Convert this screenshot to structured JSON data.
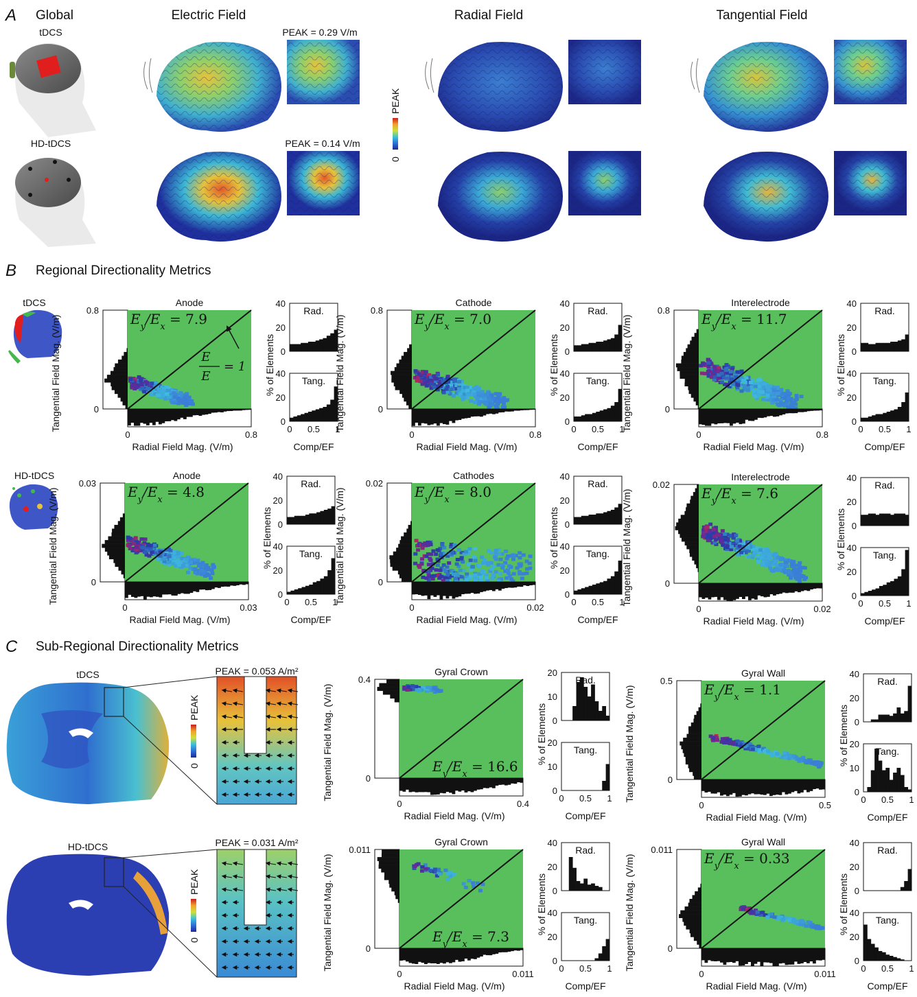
{
  "panel_letters": {
    "A": "A",
    "B": "B",
    "C": "C"
  },
  "section_A": {
    "global_label": "Global",
    "montages": [
      "tDCS",
      "HD-tDCS"
    ],
    "columns": [
      "Electric Field",
      "Radial Field",
      "Tangential Field"
    ],
    "peaks": [
      "PEAK = 0.29 V/m",
      "PEAK = 0.14 V/m"
    ],
    "colorbar": {
      "label": "PEAK",
      "zero": "0"
    }
  },
  "section_B": {
    "title": "Regional Directionality Metrics",
    "montages": [
      "tDCS",
      "HD-tDCS"
    ],
    "ylabel": "Tangential Field Mag. (V/m)",
    "xlabel": "Radial Field Mag. (V/m)",
    "hist_ylabel": "% of Elements",
    "hist_xlabel": "Comp/EF",
    "hist_labels": [
      "Rad.",
      "Tang."
    ],
    "ratio_annotation": "E_y/E_x = 1",
    "hist_y_ticks": [
      "0",
      "20",
      "40"
    ],
    "hist_x_ticks": [
      "0",
      "0.5",
      "1"
    ]
  },
  "section_C": {
    "title": "Sub-Regional Directionality Metrics",
    "montages": [
      "tDCS",
      "HD-tDCS"
    ],
    "peaks": [
      "PEAK = 0.053 A/m²",
      "PEAK = 0.031 A/m²"
    ],
    "colorbar": {
      "label": "PEAK",
      "zero": "0"
    }
  },
  "chart_data": [
    {
      "type": "heatmap",
      "panel": "B",
      "montage": "tDCS",
      "title": "Anode",
      "ratio": "E_y/E_x = 7.9",
      "xlim": [
        0,
        0.8
      ],
      "ylim": [
        0,
        0.8
      ],
      "x_ticks": [
        "0",
        "0.8"
      ],
      "y_ticks": [
        "0",
        "0.8"
      ],
      "xlabel": "Radial Field Mag. (V/m)",
      "ylabel": "Tangential Field Mag. (V/m)",
      "hist_rad": [
        6,
        6,
        6,
        7,
        7,
        8,
        8,
        9,
        10,
        11,
        13,
        15,
        18
      ],
      "hist_tang": [
        3,
        4,
        5,
        6,
        7,
        8,
        9,
        10,
        11,
        12,
        14,
        18,
        29
      ],
      "hist_ymax": 40,
      "hist_ticks": [
        "0",
        "20",
        "40"
      ]
    },
    {
      "type": "heatmap",
      "panel": "B",
      "montage": "tDCS",
      "title": "Cathode",
      "ratio": "E_y/E_x = 7.0",
      "xlim": [
        0,
        0.8
      ],
      "ylim": [
        0,
        0.8
      ],
      "x_ticks": [
        "0",
        "0.8"
      ],
      "y_ticks": [
        "0",
        "0.8"
      ],
      "xlabel": "Radial Field Mag. (V/m)",
      "ylabel": "Tangential Field Mag. (V/m)",
      "hist_rad": [
        5,
        5,
        6,
        6,
        7,
        7,
        8,
        8,
        9,
        10,
        11,
        14,
        22
      ],
      "hist_tang": [
        4,
        4,
        5,
        6,
        6,
        7,
        8,
        9,
        10,
        11,
        13,
        16,
        27
      ],
      "hist_ymax": 40,
      "hist_ticks": [
        "0",
        "20",
        "40"
      ]
    },
    {
      "type": "heatmap",
      "panel": "B",
      "montage": "tDCS",
      "title": "Interelectrode",
      "ratio": "E_y/E_x = 11.7",
      "xlim": [
        0,
        0.8
      ],
      "ylim": [
        0,
        0.8
      ],
      "x_ticks": [
        "0",
        "0.8"
      ],
      "y_ticks": [
        "0",
        "0.8"
      ],
      "xlabel": "Radial Field Mag. (V/m)",
      "ylabel": "Tangential Field Mag. (V/m)",
      "hist_rad": [
        7,
        7,
        6,
        6,
        7,
        7,
        7,
        7,
        8,
        8,
        9,
        10,
        14
      ],
      "hist_tang": [
        3,
        3,
        4,
        5,
        6,
        6,
        7,
        8,
        9,
        10,
        12,
        16,
        24
      ],
      "hist_ymax": 40,
      "hist_ticks": [
        "0",
        "20",
        "40"
      ]
    },
    {
      "type": "heatmap",
      "panel": "B",
      "montage": "HD-tDCS",
      "title": "Anode",
      "ratio": "E_y/E_x = 4.8",
      "xlim": [
        0,
        0.03
      ],
      "ylim": [
        0,
        0.03
      ],
      "x_ticks": [
        "0",
        "0.03"
      ],
      "y_ticks": [
        "0",
        "0.03"
      ],
      "xlabel": "Radial Field Mag. (V/m)",
      "ylabel": "Tangential Field Mag. (V/m)",
      "hist_rad": [
        6,
        6,
        7,
        7,
        7,
        8,
        9,
        9,
        10,
        11,
        12,
        13,
        15
      ],
      "hist_tang": [
        2,
        3,
        4,
        5,
        6,
        7,
        8,
        10,
        11,
        13,
        15,
        20,
        30
      ],
      "hist_ymax": 40,
      "hist_ticks": [
        "0",
        "20",
        "40"
      ]
    },
    {
      "type": "heatmap",
      "panel": "B",
      "montage": "HD-tDCS",
      "title": "Cathodes",
      "ratio": "E_y/E_x = 8.0",
      "xlim": [
        0,
        0.02
      ],
      "ylim": [
        0,
        0.02
      ],
      "x_ticks": [
        "0",
        "0.02"
      ],
      "y_ticks": [
        "0",
        "0.02"
      ],
      "xlabel": "Radial Field Mag. (V/m)",
      "ylabel": "Tangential Field Mag. (V/m)",
      "hist_rad": [
        6,
        6,
        7,
        7,
        8,
        8,
        9,
        9,
        10,
        11,
        12,
        14,
        17
      ],
      "hist_tang": [
        3,
        4,
        5,
        6,
        7,
        8,
        9,
        10,
        11,
        13,
        15,
        19,
        28
      ],
      "hist_ymax": 40,
      "hist_ticks": [
        "0",
        "20",
        "40"
      ]
    },
    {
      "type": "heatmap",
      "panel": "B",
      "montage": "HD-tDCS",
      "title": "Interelectrode",
      "ratio": "E_y/E_x = 7.6",
      "xlim": [
        0,
        0.02
      ],
      "ylim": [
        0,
        0.02
      ],
      "x_ticks": [
        "0",
        "0.02"
      ],
      "y_ticks": [
        "0",
        "0.02"
      ],
      "xlabel": "Radial Field Mag. (V/m)",
      "ylabel": "Tangential Field Mag. (V/m)",
      "hist_rad": [
        9,
        9,
        10,
        10,
        9,
        10,
        10,
        10,
        9,
        10,
        10,
        10,
        9
      ],
      "hist_tang": [
        2,
        3,
        4,
        5,
        6,
        8,
        9,
        11,
        12,
        14,
        16,
        22,
        38
      ],
      "hist_ymax": 40,
      "hist_ticks": [
        "0",
        "20",
        "40"
      ]
    },
    {
      "type": "heatmap",
      "panel": "C",
      "montage": "tDCS",
      "title": "Gyral Crown",
      "ratio": "E_y/E_x = 16.6",
      "xlim": [
        0,
        0.4
      ],
      "ylim": [
        0,
        0.4
      ],
      "x_ticks": [
        "0",
        "0.4"
      ],
      "y_ticks": [
        "0",
        "0.4"
      ],
      "xlabel": "Radial Field Mag. (V/m)",
      "ylabel": "Tangential Field Mag. (V/m)",
      "hist_rad": [
        0,
        0,
        0,
        6,
        16,
        18,
        14,
        10,
        15,
        8,
        4,
        6,
        2
      ],
      "hist_rad_ymax": 20,
      "hist_rad_ticks": [
        "0",
        "10",
        "20"
      ],
      "hist_tang": [
        0,
        0,
        0,
        0,
        0,
        0,
        0,
        0,
        0,
        0,
        0,
        4,
        11
      ],
      "hist_tang_ymax": 20,
      "hist_tang_ticks": [
        "0",
        "10",
        "20"
      ]
    },
    {
      "type": "heatmap",
      "panel": "C",
      "montage": "tDCS",
      "title": "Gyral Wall",
      "ratio": "E_y/E_x = 1.1",
      "xlim": [
        0,
        0.5
      ],
      "ylim": [
        0,
        0.5
      ],
      "x_ticks": [
        "0",
        "0.5"
      ],
      "y_ticks": [
        "0",
        "0.5"
      ],
      "xlabel": "Radial Field Mag. (V/m)",
      "ylabel": "Tangential Field Mag. (V/m)",
      "hist_rad": [
        0,
        0,
        2,
        2,
        6,
        6,
        6,
        5,
        7,
        12,
        7,
        9,
        30
      ],
      "hist_rad_ymax": 40,
      "hist_rad_ticks": [
        "0",
        "20",
        "40"
      ],
      "hist_tang": [
        0,
        2,
        9,
        18,
        13,
        9,
        10,
        5,
        8,
        10,
        7,
        2,
        1
      ],
      "hist_tang_ymax": 20,
      "hist_tang_ticks": [
        "0",
        "10",
        "20"
      ]
    },
    {
      "type": "heatmap",
      "panel": "C",
      "montage": "HD-tDCS",
      "title": "Gyral Crown",
      "ratio": "E_y/E_x = 7.3",
      "xlim": [
        0,
        0.011
      ],
      "ylim": [
        0,
        0.011
      ],
      "x_ticks": [
        "0",
        "0.011"
      ],
      "y_ticks": [
        "0",
        "0.011"
      ],
      "xlabel": "Radial Field Mag. (V/m)",
      "ylabel": "Tangential Field Mag. (V/m)",
      "hist_rad": [
        0,
        0,
        28,
        19,
        8,
        6,
        10,
        5,
        6,
        4,
        3,
        0,
        0
      ],
      "hist_rad_ymax": 40,
      "hist_rad_ticks": [
        "0",
        "20",
        "40"
      ],
      "hist_tang": [
        0,
        0,
        0,
        0,
        0,
        0,
        0,
        0,
        0,
        2,
        6,
        12,
        18
      ],
      "hist_tang_ymax": 40,
      "hist_tang_ticks": [
        "0",
        "20",
        "40"
      ]
    },
    {
      "type": "heatmap",
      "panel": "C",
      "montage": "HD-tDCS",
      "title": "Gyral Wall",
      "ratio": "E_y/E_x = 0.33",
      "xlim": [
        0,
        0.011
      ],
      "ylim": [
        0,
        0.011
      ],
      "x_ticks": [
        "0",
        "0.011"
      ],
      "y_ticks": [
        "0",
        "0.011"
      ],
      "xlabel": "Radial Field Mag. (V/m)",
      "ylabel": "Tangential Field Mag. (V/m)",
      "hist_rad": [
        0,
        0,
        0,
        0,
        0,
        0,
        0,
        0,
        0,
        0,
        3,
        8,
        18
      ],
      "hist_rad_ymax": 40,
      "hist_rad_ticks": [
        "0",
        "20",
        "40"
      ],
      "hist_tang": [
        30,
        18,
        14,
        11,
        8,
        7,
        5,
        4,
        3,
        2,
        1,
        0,
        0
      ],
      "hist_tang_ymax": 40,
      "hist_tang_ticks": [
        "0",
        "20",
        "40"
      ]
    }
  ]
}
